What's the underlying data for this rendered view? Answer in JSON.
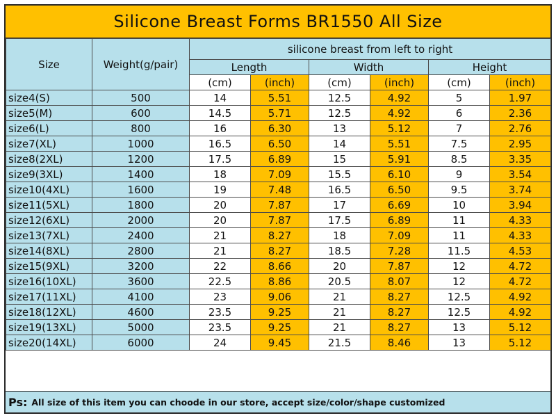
{
  "title": "Silicone Breast Forms BR1550 All Size",
  "header": {
    "size": "Size",
    "weight": "Weight(g/pair)",
    "group": "silicone breast from left to right",
    "length": "Length",
    "width": "Width",
    "height": "Height",
    "unit_cm": "(cm)",
    "unit_inch": "(inch)"
  },
  "rows": [
    {
      "size": "size4(S)",
      "weight": "500",
      "len_cm": "14",
      "len_in": "5.51",
      "wid_cm": "12.5",
      "wid_in": "4.92",
      "hei_cm": "5",
      "hei_in": "1.97"
    },
    {
      "size": "size5(M)",
      "weight": "600",
      "len_cm": "14.5",
      "len_in": "5.71",
      "wid_cm": "12.5",
      "wid_in": "4.92",
      "hei_cm": "6",
      "hei_in": "2.36"
    },
    {
      "size": "size6(L)",
      "weight": "800",
      "len_cm": "16",
      "len_in": "6.30",
      "wid_cm": "13",
      "wid_in": "5.12",
      "hei_cm": "7",
      "hei_in": "2.76"
    },
    {
      "size": "size7(XL)",
      "weight": "1000",
      "len_cm": "16.5",
      "len_in": "6.50",
      "wid_cm": "14",
      "wid_in": "5.51",
      "hei_cm": "7.5",
      "hei_in": "2.95"
    },
    {
      "size": "size8(2XL)",
      "weight": "1200",
      "len_cm": "17.5",
      "len_in": "6.89",
      "wid_cm": "15",
      "wid_in": "5.91",
      "hei_cm": "8.5",
      "hei_in": "3.35"
    },
    {
      "size": "size9(3XL)",
      "weight": "1400",
      "len_cm": "18",
      "len_in": "7.09",
      "wid_cm": "15.5",
      "wid_in": "6.10",
      "hei_cm": "9",
      "hei_in": "3.54"
    },
    {
      "size": "size10(4XL)",
      "weight": "1600",
      "len_cm": "19",
      "len_in": "7.48",
      "wid_cm": "16.5",
      "wid_in": "6.50",
      "hei_cm": "9.5",
      "hei_in": "3.74"
    },
    {
      "size": "size11(5XL)",
      "weight": "1800",
      "len_cm": "20",
      "len_in": "7.87",
      "wid_cm": "17",
      "wid_in": "6.69",
      "hei_cm": "10",
      "hei_in": "3.94"
    },
    {
      "size": "size12(6XL)",
      "weight": "2000",
      "len_cm": "20",
      "len_in": "7.87",
      "wid_cm": "17.5",
      "wid_in": "6.89",
      "hei_cm": "11",
      "hei_in": "4.33"
    },
    {
      "size": "size13(7XL)",
      "weight": "2400",
      "len_cm": "21",
      "len_in": "8.27",
      "wid_cm": "18",
      "wid_in": "7.09",
      "hei_cm": "11",
      "hei_in": "4.33"
    },
    {
      "size": "size14(8XL)",
      "weight": "2800",
      "len_cm": "21",
      "len_in": "8.27",
      "wid_cm": "18.5",
      "wid_in": "7.28",
      "hei_cm": "11.5",
      "hei_in": "4.53"
    },
    {
      "size": "size15(9XL)",
      "weight": "3200",
      "len_cm": "22",
      "len_in": "8.66",
      "wid_cm": "20",
      "wid_in": "7.87",
      "hei_cm": "12",
      "hei_in": "4.72"
    },
    {
      "size": "size16(10XL)",
      "weight": "3600",
      "len_cm": "22.5",
      "len_in": "8.86",
      "wid_cm": "20.5",
      "wid_in": "8.07",
      "hei_cm": "12",
      "hei_in": "4.72"
    },
    {
      "size": "size17(11XL)",
      "weight": "4100",
      "len_cm": "23",
      "len_in": "9.06",
      "wid_cm": "21",
      "wid_in": "8.27",
      "hei_cm": "12.5",
      "hei_in": "4.92"
    },
    {
      "size": "size18(12XL)",
      "weight": "4600",
      "len_cm": "23.5",
      "len_in": "9.25",
      "wid_cm": "21",
      "wid_in": "8.27",
      "hei_cm": "12.5",
      "hei_in": "4.92"
    },
    {
      "size": "size19(13XL)",
      "weight": "5000",
      "len_cm": "23.5",
      "len_in": "9.25",
      "wid_cm": "21",
      "wid_in": "8.27",
      "hei_cm": "13",
      "hei_in": "5.12"
    },
    {
      "size": "size20(14XL)",
      "weight": "6000",
      "len_cm": "24",
      "len_in": "9.45",
      "wid_cm": "21.5",
      "wid_in": "8.46",
      "hei_cm": "13",
      "hei_in": "5.12"
    }
  ],
  "footer": {
    "label": "Ps:",
    "text": "All size of this item you can choode in our store, accept size/color/shape customized"
  },
  "colors": {
    "accent_orange": "#FFC000",
    "header_blue": "#B7E0EB",
    "border": "#4a4a4a"
  }
}
